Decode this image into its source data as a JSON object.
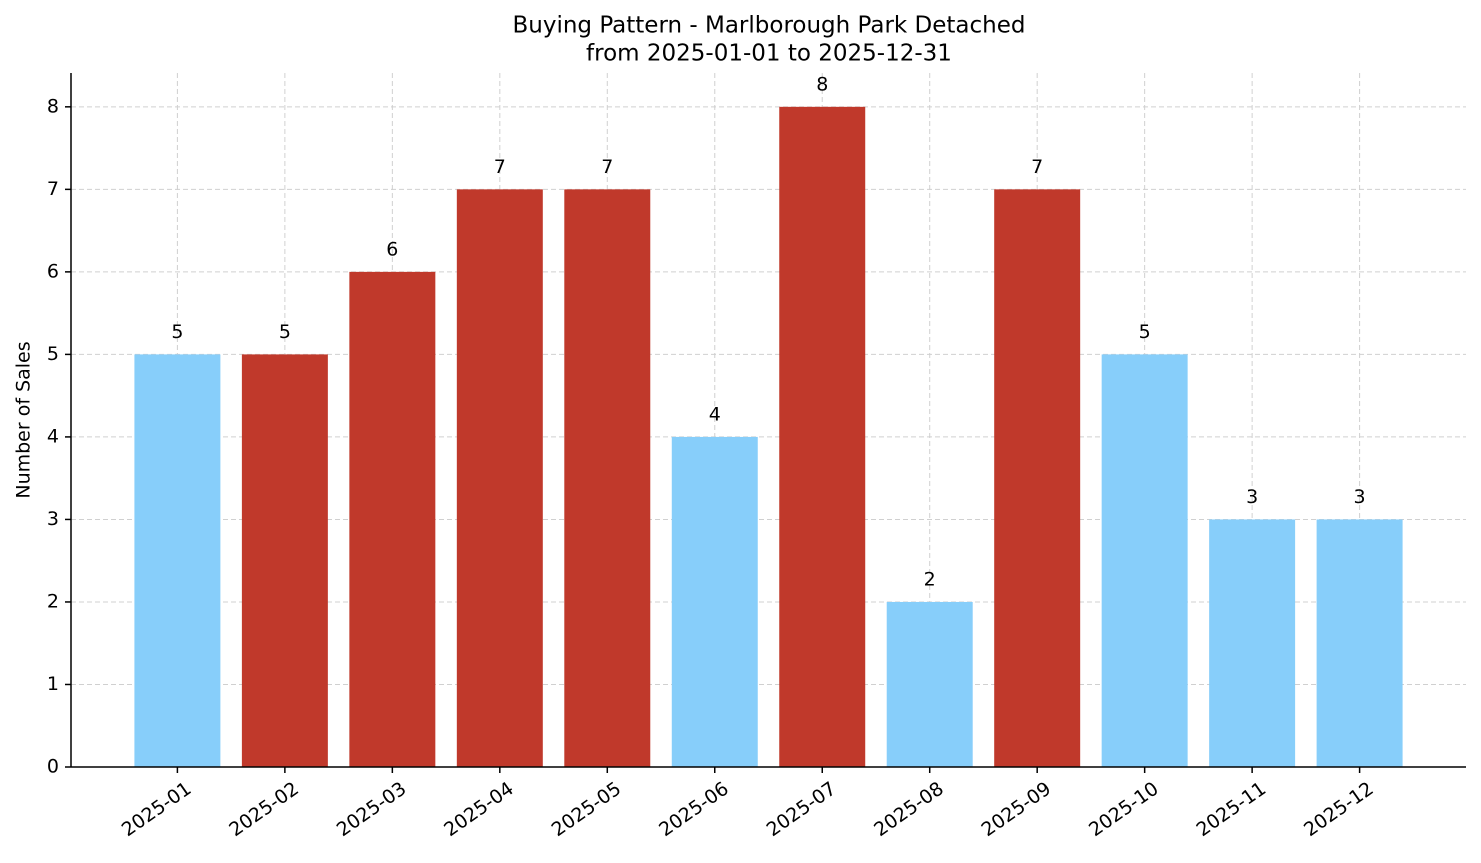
{
  "chart_data": {
    "type": "bar",
    "title": "Buying Pattern - Marlborough Park Detached",
    "subtitle": "from 2025-01-01 to 2025-12-31",
    "y_label": "Number of Sales",
    "categories": [
      "2025-01",
      "2025-02",
      "2025-03",
      "2025-04",
      "2025-05",
      "2025-06",
      "2025-07",
      "2025-08",
      "2025-09",
      "2025-10",
      "2025-11",
      "2025-12"
    ],
    "values": [
      5,
      5,
      6,
      7,
      7,
      4,
      8,
      2,
      7,
      5,
      3,
      3
    ],
    "colors": [
      "#87cefa",
      "#c0392b",
      "#c0392b",
      "#c0392b",
      "#c0392b",
      "#87cefa",
      "#c0392b",
      "#87cefa",
      "#c0392b",
      "#87cefa",
      "#87cefa",
      "#87cefa"
    ],
    "ylim": [
      0,
      8.41
    ],
    "yticks": [
      0,
      1,
      2,
      3,
      4,
      5,
      6,
      7,
      8
    ],
    "grid": true
  }
}
